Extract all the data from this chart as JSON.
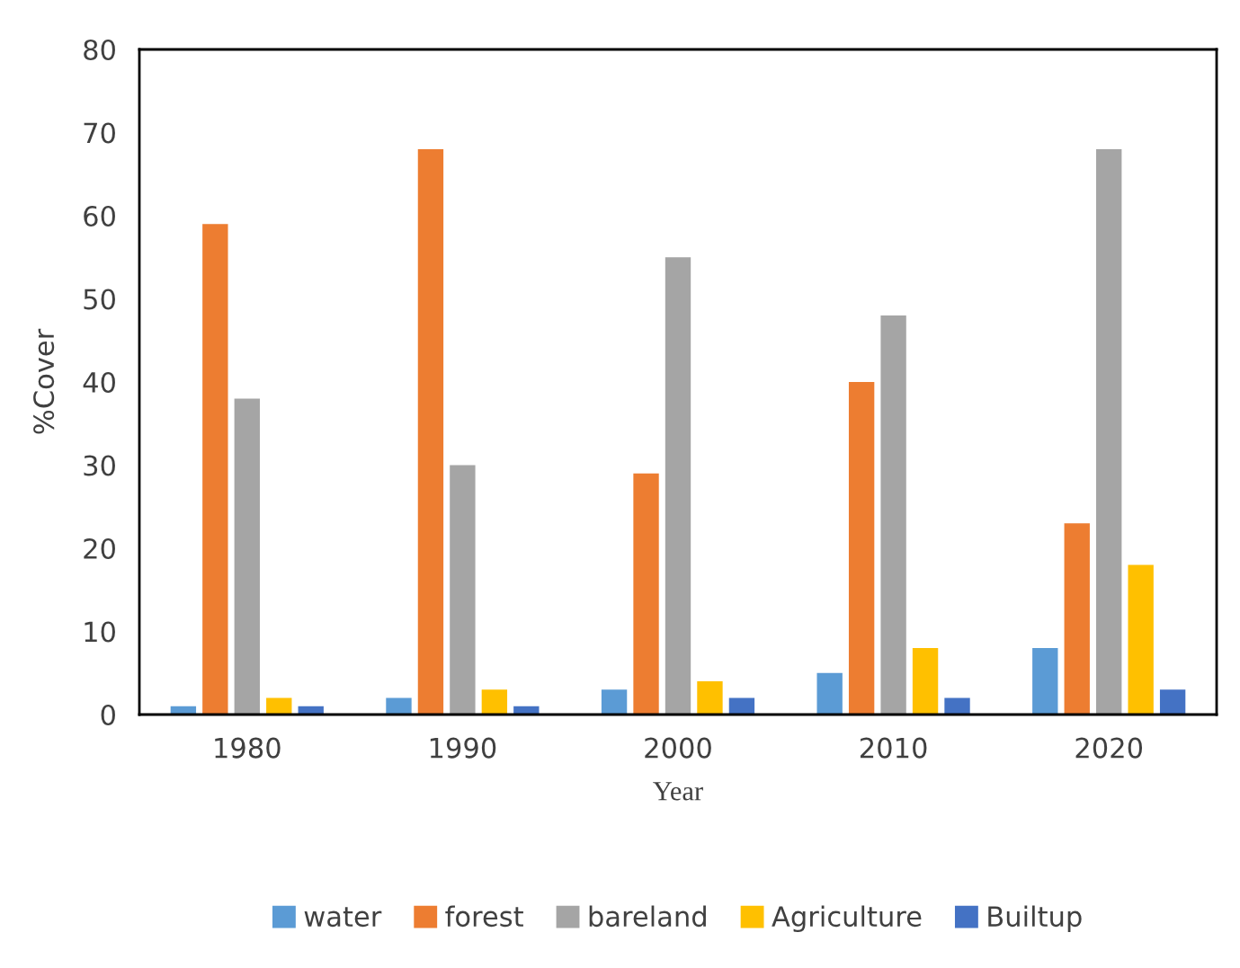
{
  "chart_data": {
    "type": "bar",
    "xlabel": "Year",
    "ylabel": "%Cover",
    "categories": [
      "1980",
      "1990",
      "2000",
      "2010",
      "2020"
    ],
    "series": [
      {
        "name": "water",
        "color": "#5b9bd5",
        "values": [
          1,
          2,
          3,
          5,
          8
        ]
      },
      {
        "name": "forest",
        "color": "#ed7d31",
        "values": [
          59,
          68,
          29,
          40,
          23
        ]
      },
      {
        "name": "bareland",
        "color": "#a5a5a5",
        "values": [
          38,
          30,
          55,
          48,
          68
        ]
      },
      {
        "name": "Agriculture",
        "color": "#ffc000",
        "values": [
          2,
          3,
          4,
          8,
          18
        ]
      },
      {
        "name": "Builtup",
        "color": "#4472c4",
        "values": [
          1,
          1,
          2,
          2,
          3
        ]
      }
    ],
    "ylim": [
      0,
      80
    ],
    "yticks": [
      0,
      10,
      20,
      30,
      40,
      50,
      60,
      70,
      80
    ],
    "grid": false,
    "legend": "bottom"
  }
}
